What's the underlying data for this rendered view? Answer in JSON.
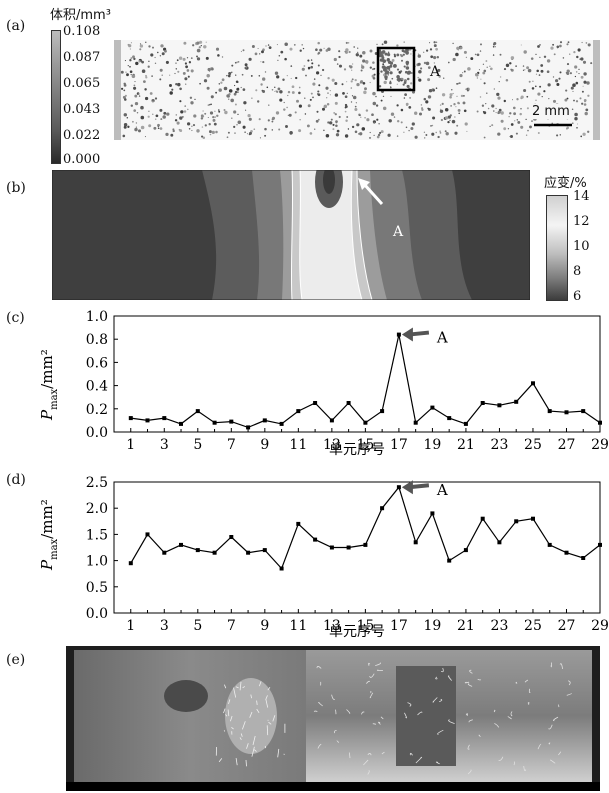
{
  "panels": {
    "a": {
      "label": "(a)",
      "colorbar_title": "体积/mm³",
      "colorbar_ticks": [
        "0.108",
        "0.087",
        "0.065",
        "0.043",
        "0.022",
        "0.000"
      ],
      "marker_label": "A",
      "scale_label": "2 mm"
    },
    "b": {
      "label": "(b)",
      "colorbar_title": "应变/%",
      "colorbar_ticks": [
        "14",
        "12",
        "10",
        "8",
        "6"
      ],
      "marker_label": "A"
    },
    "e": {
      "label": "(e)"
    }
  },
  "chart_data": [
    {
      "panel": "(c)",
      "type": "line",
      "xlabel": "单元序号",
      "ylabel_main": "P",
      "ylabel_sub": "max",
      "ylabel_unit": "/mm²",
      "ylim": [
        0,
        1.0
      ],
      "yticks": [
        0.0,
        0.2,
        0.4,
        0.6,
        0.8,
        1.0
      ],
      "ytick_labels": [
        "0.0",
        "0.2",
        "0.4",
        "0.6",
        "0.8",
        "1.0"
      ],
      "xlim": [
        0,
        29
      ],
      "xtick_labels": [
        "1",
        "3",
        "5",
        "7",
        "9",
        "11",
        "13",
        "15",
        "17",
        "19",
        "21",
        "23",
        "25",
        "27",
        "29"
      ],
      "annotation": "A",
      "annotation_x": 17,
      "series": [
        {
          "x": [
            1,
            2,
            3,
            4,
            5,
            6,
            7,
            8,
            9,
            10,
            11,
            12,
            13,
            14,
            15,
            16,
            17,
            18,
            19,
            20,
            21,
            22,
            23,
            24,
            25,
            26,
            27,
            28,
            29
          ],
          "y": [
            0.12,
            0.1,
            0.12,
            0.07,
            0.18,
            0.08,
            0.09,
            0.04,
            0.1,
            0.07,
            0.18,
            0.25,
            0.1,
            0.25,
            0.08,
            0.18,
            0.84,
            0.08,
            0.21,
            0.12,
            0.07,
            0.25,
            0.23,
            0.26,
            0.42,
            0.18,
            0.17,
            0.18,
            0.08
          ]
        }
      ]
    },
    {
      "panel": "(d)",
      "type": "line",
      "xlabel": "单元序号",
      "ylabel_main": "P",
      "ylabel_sub": "max",
      "ylabel_unit": "/mm²",
      "ylim": [
        0,
        2.5
      ],
      "yticks": [
        0.0,
        0.5,
        1.0,
        1.5,
        2.0,
        2.5
      ],
      "ytick_labels": [
        "0.0",
        "0.5",
        "1.0",
        "1.5",
        "2.0",
        "2.5"
      ],
      "xlim": [
        0,
        29
      ],
      "xtick_labels": [
        "1",
        "3",
        "5",
        "7",
        "9",
        "11",
        "13",
        "15",
        "17",
        "19",
        "21",
        "23",
        "25",
        "27",
        "29"
      ],
      "annotation": "A",
      "annotation_x": 17,
      "series": [
        {
          "x": [
            1,
            2,
            3,
            4,
            5,
            6,
            7,
            8,
            9,
            10,
            11,
            12,
            13,
            14,
            15,
            16,
            17,
            18,
            19,
            20,
            21,
            22,
            23,
            24,
            25,
            26,
            27,
            28,
            29
          ],
          "y": [
            0.95,
            1.5,
            1.15,
            1.3,
            1.2,
            1.15,
            1.45,
            1.15,
            1.2,
            0.85,
            1.7,
            1.4,
            1.25,
            1.25,
            1.3,
            2.0,
            2.4,
            1.35,
            1.9,
            1.0,
            1.2,
            1.8,
            1.35,
            1.75,
            1.8,
            1.3,
            1.15,
            1.05,
            1.3
          ]
        }
      ]
    }
  ]
}
